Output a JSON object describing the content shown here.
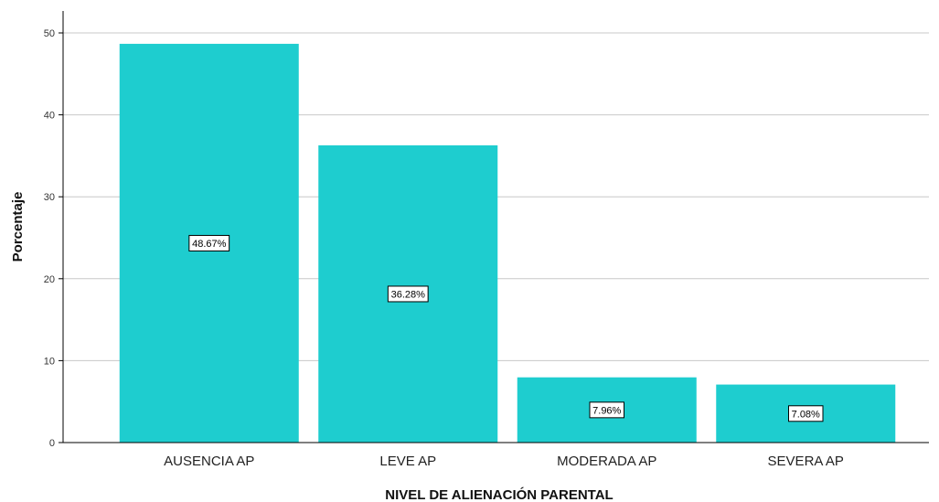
{
  "chart_data": {
    "type": "bar",
    "categories": [
      "AUSENCIA AP",
      "LEVE AP",
      "MODERADA AP",
      "SEVERA AP"
    ],
    "values": [
      48.67,
      36.28,
      7.96,
      7.08
    ],
    "data_labels": [
      "48.67%",
      "36.28%",
      "7.96%",
      "7.08%"
    ],
    "xlabel": "NIVEL DE ALIENACIÓN PARENTAL",
    "ylabel": "Porcentaje",
    "ylim": [
      0,
      50
    ],
    "yticks": [
      0,
      10,
      20,
      30,
      40,
      50
    ],
    "grid": true,
    "bar_color": "#1ecdcf"
  }
}
